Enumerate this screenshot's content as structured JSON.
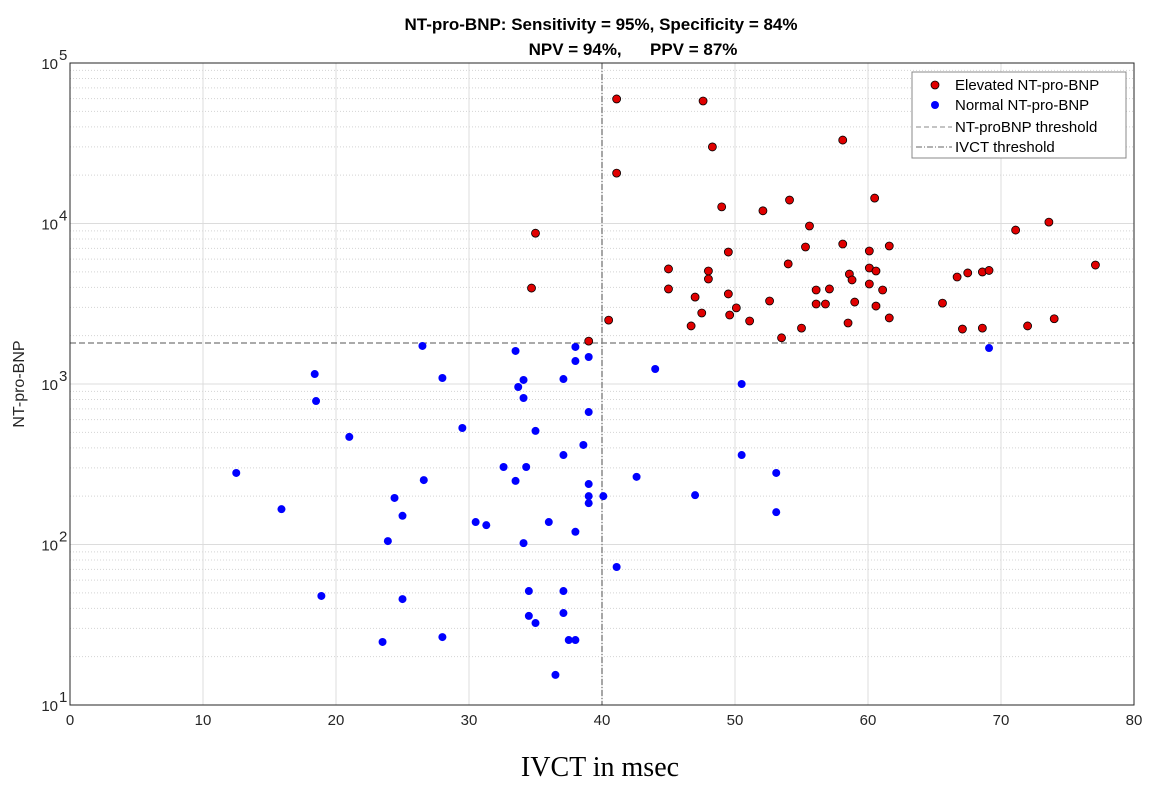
{
  "chart_data": {
    "type": "scatter",
    "title": [
      "NT-pro-BNP: Sensitivity = 95%, Specificity = 84%",
      "NPV = 94%,      PPV = 87%"
    ],
    "xlabel": "IVCT in msec",
    "ylabel": "NT-pro-BNP",
    "xlim": [
      0,
      80
    ],
    "ylim": [
      10,
      100000
    ],
    "yscale": "log",
    "xticks": [
      "0",
      "10",
      "20",
      "30",
      "40",
      "50",
      "60",
      "70",
      "80"
    ],
    "yticks": [
      {
        "base": "10",
        "exp": "1"
      },
      {
        "base": "10",
        "exp": "2"
      },
      {
        "base": "10",
        "exp": "3"
      },
      {
        "base": "10",
        "exp": "4"
      },
      {
        "base": "10",
        "exp": "5"
      }
    ],
    "grid": true,
    "legend_position": "top-right",
    "thresholds": {
      "ntprobnp": 1800,
      "ivct": 40
    },
    "series": [
      {
        "name": "Elevated NT-pro-BNP",
        "color": "#e00000",
        "edge": "#000000",
        "points": [
          [
            41.1,
            59700
          ],
          [
            47.6,
            58000
          ],
          [
            58.1,
            33100
          ],
          [
            48.3,
            30000
          ],
          [
            41.1,
            20600
          ],
          [
            60.5,
            14400
          ],
          [
            49.0,
            12700
          ],
          [
            52.1,
            12000
          ],
          [
            54.1,
            14000
          ],
          [
            73.6,
            10200
          ],
          [
            71.1,
            9100
          ],
          [
            35.0,
            8700
          ],
          [
            55.6,
            9650
          ],
          [
            55.3,
            7140
          ],
          [
            58.1,
            7450
          ],
          [
            49.5,
            6640
          ],
          [
            60.1,
            6740
          ],
          [
            61.6,
            7240
          ],
          [
            77.1,
            5510
          ],
          [
            54.0,
            5600
          ],
          [
            45.0,
            5210
          ],
          [
            48.0,
            5060
          ],
          [
            48.0,
            4510
          ],
          [
            58.6,
            4840
          ],
          [
            60.1,
            5280
          ],
          [
            60.6,
            5060
          ],
          [
            58.8,
            4450
          ],
          [
            66.7,
            4640
          ],
          [
            67.5,
            4920
          ],
          [
            68.6,
            4990
          ],
          [
            69.1,
            5100
          ],
          [
            34.7,
            3960
          ],
          [
            45.0,
            3910
          ],
          [
            47.0,
            3480
          ],
          [
            49.5,
            3640
          ],
          [
            56.1,
            3850
          ],
          [
            57.1,
            3910
          ],
          [
            60.1,
            4200
          ],
          [
            61.1,
            3850
          ],
          [
            59.0,
            3240
          ],
          [
            56.1,
            3150
          ],
          [
            56.8,
            3150
          ],
          [
            65.6,
            3190
          ],
          [
            60.6,
            3060
          ],
          [
            52.6,
            3290
          ],
          [
            50.1,
            2980
          ],
          [
            47.5,
            2770
          ],
          [
            49.6,
            2690
          ],
          [
            51.1,
            2470
          ],
          [
            40.5,
            2500
          ],
          [
            61.6,
            2580
          ],
          [
            74.0,
            2550
          ],
          [
            58.5,
            2400
          ],
          [
            55.0,
            2230
          ],
          [
            46.7,
            2300
          ],
          [
            67.1,
            2200
          ],
          [
            68.6,
            2230
          ],
          [
            72.0,
            2300
          ],
          [
            53.5,
            1940
          ],
          [
            39.0,
            1850
          ]
        ]
      },
      {
        "name": "Normal NT-pro-BNP",
        "color": "#0000ff",
        "points": [
          [
            69.1,
            1675
          ],
          [
            26.5,
            1726
          ],
          [
            18.4,
            1154
          ],
          [
            18.5,
            783
          ],
          [
            21.0,
            468
          ],
          [
            12.5,
            279
          ],
          [
            15.9,
            166
          ],
          [
            18.9,
            47.8
          ],
          [
            28.0,
            1090
          ],
          [
            29.5,
            532
          ],
          [
            24.4,
            195
          ],
          [
            25.0,
            151
          ],
          [
            26.6,
            252
          ],
          [
            30.5,
            138
          ],
          [
            31.3,
            132
          ],
          [
            32.6,
            304
          ],
          [
            34.3,
            304
          ],
          [
            33.5,
            249
          ],
          [
            33.5,
            1606
          ],
          [
            28.0,
            26.5
          ],
          [
            23.9,
            105
          ],
          [
            23.5,
            24.7
          ],
          [
            25.0,
            45.7
          ],
          [
            34.1,
            1060
          ],
          [
            33.7,
            958
          ],
          [
            34.1,
            818
          ],
          [
            35.0,
            510
          ],
          [
            34.1,
            102
          ],
          [
            34.5,
            51.3
          ],
          [
            34.5,
            35.9
          ],
          [
            35.0,
            32.4
          ],
          [
            36.0,
            138
          ],
          [
            37.1,
            1074
          ],
          [
            37.1,
            361
          ],
          [
            37.1,
            51.3
          ],
          [
            37.1,
            37.4
          ],
          [
            37.5,
            25.4
          ],
          [
            38.0,
            25.4
          ],
          [
            38.0,
            1701
          ],
          [
            38.0,
            1390
          ],
          [
            38.0,
            120
          ],
          [
            39.0,
            1473
          ],
          [
            39.0,
            669
          ],
          [
            38.6,
            417
          ],
          [
            39.0,
            238
          ],
          [
            39.0,
            200
          ],
          [
            39.0,
            181
          ],
          [
            40.1,
            200
          ],
          [
            36.5,
            15.4
          ],
          [
            41.1,
            72.4
          ],
          [
            42.6,
            264
          ],
          [
            44.0,
            1240
          ],
          [
            47.0,
            203
          ],
          [
            50.5,
            361
          ],
          [
            50.5,
            1000
          ],
          [
            53.1,
            279
          ],
          [
            53.1,
            159
          ]
        ]
      }
    ],
    "legend": [
      "Elevated NT-pro-BNP",
      "Normal NT-pro-BNP",
      "NT-proBNP threshold",
      "IVCT threshold"
    ]
  }
}
